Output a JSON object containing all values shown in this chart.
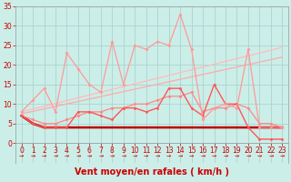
{
  "background_color": "#cceee8",
  "grid_color": "#aad4ce",
  "xlabel": "Vent moyen/en rafales ( km/h )",
  "x_ticks": [
    0,
    1,
    2,
    3,
    4,
    5,
    6,
    7,
    8,
    9,
    10,
    11,
    12,
    13,
    14,
    15,
    16,
    17,
    18,
    19,
    20,
    21,
    22,
    23
  ],
  "ylim": [
    -5,
    35
  ],
  "yticks": [
    0,
    5,
    10,
    15,
    20,
    25,
    30,
    35
  ],
  "text_color": "#cc0000",
  "label_fontsize": 7,
  "tick_fontsize": 5.5,
  "arrow_symbols": "→→→→→→→→→→→→→→→→→→→→→→→→",
  "lines": [
    {
      "label": "flat_dark",
      "color": "#bb0000",
      "linewidth": 1.8,
      "marker": null,
      "markersize": 0,
      "x": [
        0,
        1,
        2,
        3,
        4,
        5,
        6,
        7,
        8,
        9,
        10,
        11,
        12,
        13,
        14,
        15,
        16,
        17,
        18,
        19,
        20,
        21,
        22,
        23
      ],
      "y": [
        7,
        5,
        4,
        4,
        4,
        4,
        4,
        4,
        4,
        4,
        4,
        4,
        4,
        4,
        4,
        4,
        4,
        4,
        4,
        4,
        4,
        4,
        4,
        4
      ]
    },
    {
      "label": "trend1",
      "color": "#ffaaaa",
      "linewidth": 0.9,
      "marker": null,
      "markersize": 0,
      "x": [
        0,
        23
      ],
      "y": [
        7.5,
        22.0
      ]
    },
    {
      "label": "trend2",
      "color": "#ffbbbb",
      "linewidth": 0.9,
      "marker": null,
      "markersize": 0,
      "x": [
        0,
        23
      ],
      "y": [
        8.0,
        24.5
      ]
    },
    {
      "label": "medium_jagged",
      "color": "#ff8888",
      "linewidth": 0.9,
      "marker": "D",
      "markersize": 2,
      "x": [
        0,
        1,
        2,
        3,
        4,
        5,
        6,
        7,
        8,
        9,
        10,
        11,
        12,
        13,
        14,
        15,
        16,
        17,
        18,
        19,
        20,
        21,
        22,
        23
      ],
      "y": [
        7,
        6,
        5,
        5,
        6,
        7,
        8,
        8,
        9,
        9,
        10,
        10,
        11,
        12,
        12,
        13,
        8,
        9,
        9,
        10,
        9,
        5,
        5,
        4
      ]
    },
    {
      "label": "med_red_markers",
      "color": "#ff5555",
      "linewidth": 1.0,
      "marker": "o",
      "markersize": 2,
      "x": [
        0,
        1,
        2,
        3,
        4,
        5,
        6,
        7,
        8,
        9,
        10,
        11,
        12,
        13,
        14,
        15,
        16,
        17,
        18,
        19,
        20,
        21,
        22,
        23
      ],
      "y": [
        7,
        5,
        4,
        4,
        4,
        8,
        8,
        7,
        6,
        9,
        9,
        8,
        9,
        14,
        14,
        9,
        7,
        15,
        10,
        10,
        4,
        1,
        1,
        1
      ]
    },
    {
      "label": "high_jagged",
      "color": "#ff9999",
      "linewidth": 0.9,
      "marker": "D",
      "markersize": 2,
      "x": [
        0,
        1,
        2,
        3,
        4,
        5,
        6,
        7,
        8,
        9,
        10,
        11,
        12,
        13,
        14,
        15,
        16,
        17,
        18,
        19,
        20,
        21,
        22,
        23
      ],
      "y": [
        8,
        11,
        14,
        8,
        23,
        19,
        15,
        13,
        26,
        15,
        25,
        24,
        26,
        25,
        33,
        24,
        6,
        9,
        10,
        9,
        24,
        4,
        4,
        4
      ]
    }
  ]
}
